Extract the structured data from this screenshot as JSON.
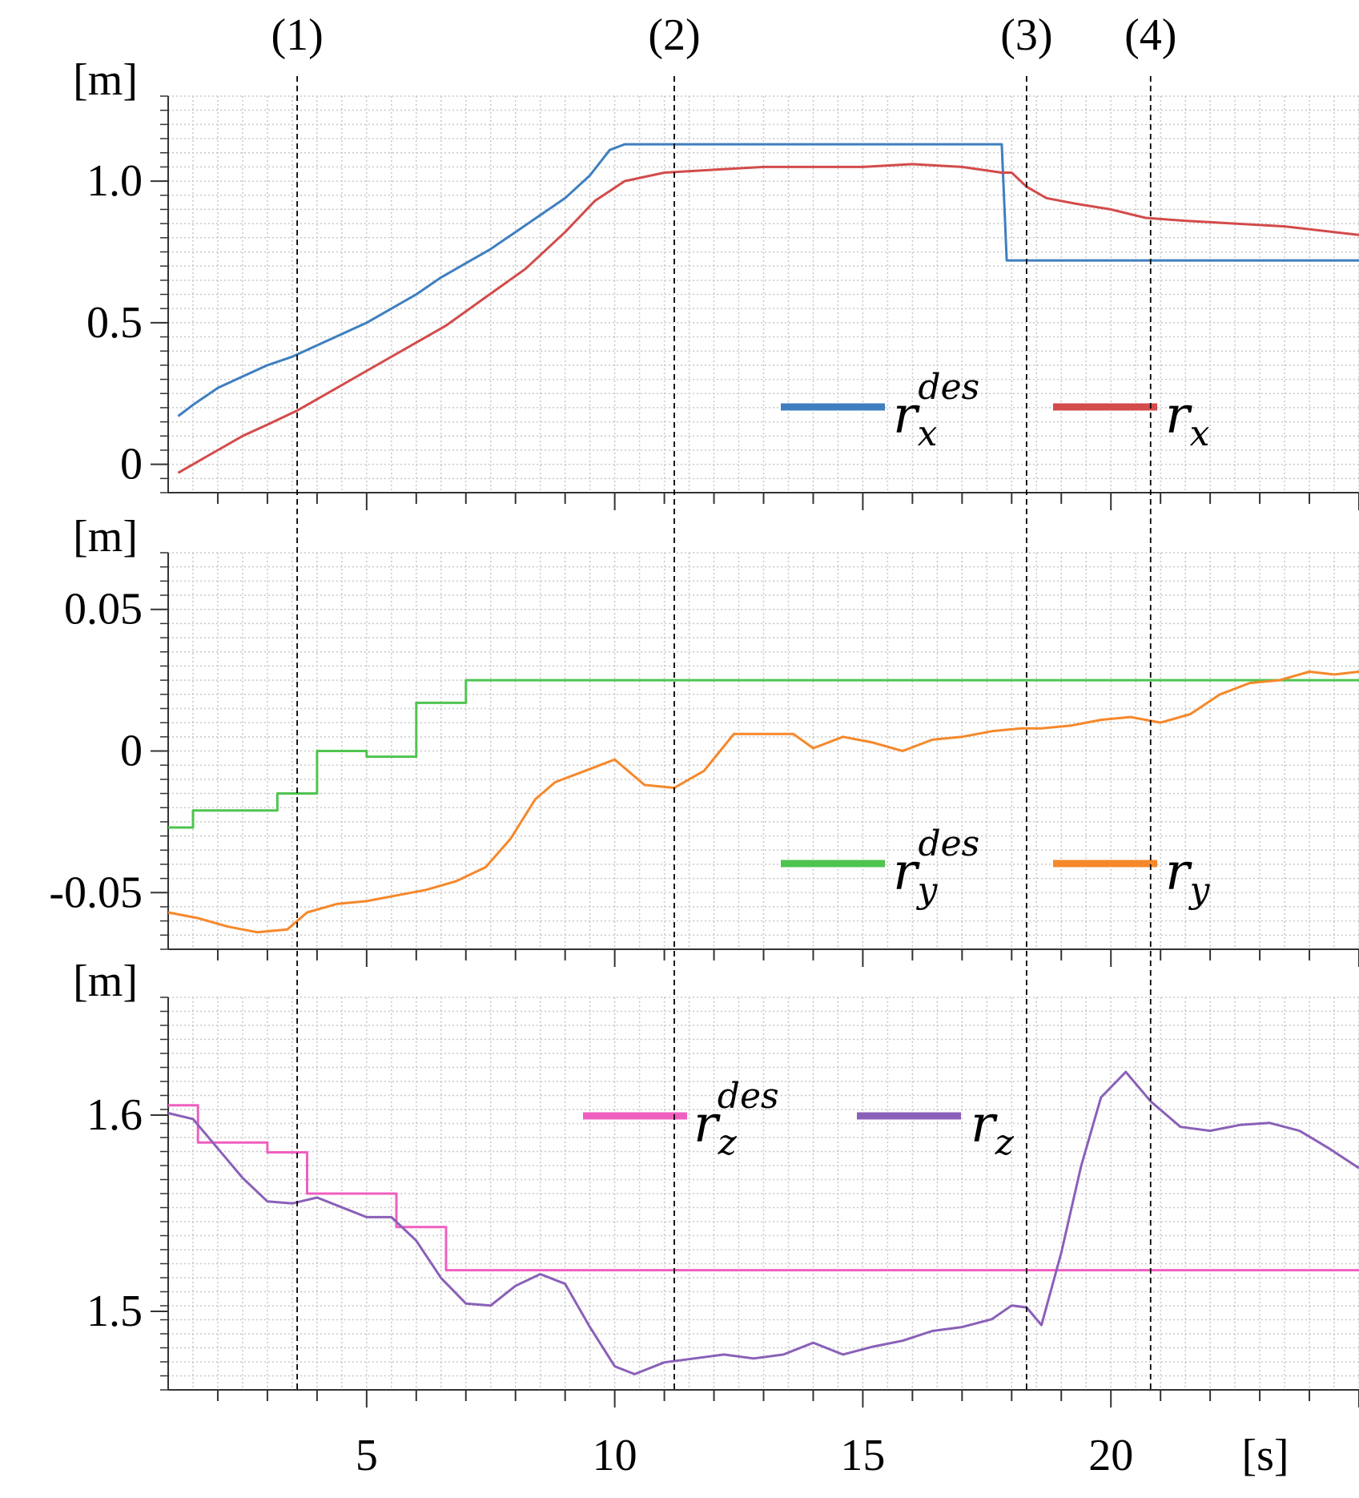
{
  "figure": {
    "markers": [
      {
        "label": "(1)",
        "t": 3.6
      },
      {
        "label": "(2)",
        "t": 11.2
      },
      {
        "label": "(3)",
        "t": 18.3
      },
      {
        "label": "(4)",
        "t": 20.8
      }
    ],
    "x_unit": "[s]",
    "x_ticks": [
      5,
      10,
      15,
      20
    ],
    "x_range": [
      1,
      25
    ]
  },
  "chart_data": [
    {
      "type": "line",
      "panel": "x",
      "ylabel": "[m]",
      "ylim": [
        -0.1,
        1.3
      ],
      "yticks": [
        0,
        0.5,
        1.0
      ],
      "ytick_labels": [
        "0",
        "0.5",
        "1.0"
      ],
      "grid": true,
      "legend": "center-right",
      "series": [
        {
          "name": "r",
          "sub": "x",
          "sup": "des",
          "color": "#3f7fbf",
          "step": true,
          "points": [
            [
              1.2,
              0.17
            ],
            [
              1.5,
              0.21
            ],
            [
              2.0,
              0.27
            ],
            [
              2.5,
              0.31
            ],
            [
              3.0,
              0.35
            ],
            [
              3.5,
              0.38
            ],
            [
              4.0,
              0.42
            ],
            [
              4.5,
              0.46
            ],
            [
              5.0,
              0.5
            ],
            [
              5.5,
              0.55
            ],
            [
              6.0,
              0.6
            ],
            [
              6.5,
              0.66
            ],
            [
              7.0,
              0.71
            ],
            [
              7.5,
              0.76
            ],
            [
              8.0,
              0.82
            ],
            [
              8.5,
              0.88
            ],
            [
              9.0,
              0.94
            ],
            [
              9.5,
              1.02
            ],
            [
              9.9,
              1.11
            ],
            [
              10.2,
              1.13
            ],
            [
              17.8,
              1.13
            ],
            [
              17.9,
              0.72
            ],
            [
              25.0,
              0.72
            ]
          ]
        },
        {
          "name": "r",
          "sub": "x",
          "sup": "",
          "color": "#d34b4b",
          "step": false,
          "points": [
            [
              1.2,
              -0.03
            ],
            [
              1.8,
              0.03
            ],
            [
              2.5,
              0.1
            ],
            [
              3.0,
              0.14
            ],
            [
              3.6,
              0.19
            ],
            [
              4.2,
              0.25
            ],
            [
              5.0,
              0.33
            ],
            [
              5.8,
              0.41
            ],
            [
              6.6,
              0.49
            ],
            [
              7.4,
              0.59
            ],
            [
              8.2,
              0.69
            ],
            [
              9.0,
              0.82
            ],
            [
              9.6,
              0.93
            ],
            [
              10.2,
              1.0
            ],
            [
              11.0,
              1.03
            ],
            [
              12.0,
              1.04
            ],
            [
              13.0,
              1.05
            ],
            [
              14.0,
              1.05
            ],
            [
              15.0,
              1.05
            ],
            [
              16.0,
              1.06
            ],
            [
              17.0,
              1.05
            ],
            [
              17.8,
              1.03
            ],
            [
              18.0,
              1.03
            ],
            [
              18.3,
              0.98
            ],
            [
              18.7,
              0.94
            ],
            [
              19.3,
              0.92
            ],
            [
              20.0,
              0.9
            ],
            [
              20.7,
              0.87
            ],
            [
              21.5,
              0.86
            ],
            [
              22.5,
              0.85
            ],
            [
              23.5,
              0.84
            ],
            [
              24.5,
              0.82
            ],
            [
              25.0,
              0.81
            ]
          ]
        }
      ]
    },
    {
      "type": "line",
      "panel": "y",
      "ylabel": "[m]",
      "ylim": [
        -0.07,
        0.07
      ],
      "yticks": [
        -0.05,
        0,
        0.05
      ],
      "ytick_labels": [
        "-0.05",
        "0",
        "0.05"
      ],
      "grid": true,
      "legend": "lower-right",
      "series": [
        {
          "name": "r",
          "sub": "y",
          "sup": "des",
          "color": "#4fc44f",
          "step": true,
          "points": [
            [
              1.0,
              -0.027
            ],
            [
              1.5,
              -0.027
            ],
            [
              1.5,
              -0.021
            ],
            [
              3.2,
              -0.021
            ],
            [
              3.2,
              -0.015
            ],
            [
              4.0,
              -0.015
            ],
            [
              4.0,
              0.0
            ],
            [
              5.0,
              0.0
            ],
            [
              5.0,
              -0.002
            ],
            [
              6.0,
              -0.002
            ],
            [
              6.0,
              0.017
            ],
            [
              7.0,
              0.017
            ],
            [
              7.0,
              0.025
            ],
            [
              25.0,
              0.025
            ]
          ]
        },
        {
          "name": "r",
          "sub": "y",
          "sup": "",
          "color": "#f5882a",
          "step": false,
          "points": [
            [
              1.0,
              -0.057
            ],
            [
              1.6,
              -0.059
            ],
            [
              2.2,
              -0.062
            ],
            [
              2.8,
              -0.064
            ],
            [
              3.4,
              -0.063
            ],
            [
              3.8,
              -0.057
            ],
            [
              4.4,
              -0.054
            ],
            [
              5.0,
              -0.053
            ],
            [
              5.6,
              -0.051
            ],
            [
              6.2,
              -0.049
            ],
            [
              6.8,
              -0.046
            ],
            [
              7.4,
              -0.041
            ],
            [
              7.9,
              -0.031
            ],
            [
              8.4,
              -0.017
            ],
            [
              8.8,
              -0.011
            ],
            [
              9.4,
              -0.007
            ],
            [
              10.0,
              -0.003
            ],
            [
              10.6,
              -0.012
            ],
            [
              11.2,
              -0.013
            ],
            [
              11.8,
              -0.007
            ],
            [
              12.4,
              0.006
            ],
            [
              13.0,
              0.006
            ],
            [
              13.6,
              0.006
            ],
            [
              14.0,
              0.001
            ],
            [
              14.6,
              0.005
            ],
            [
              15.2,
              0.003
            ],
            [
              15.8,
              0.0
            ],
            [
              16.4,
              0.004
            ],
            [
              17.0,
              0.005
            ],
            [
              17.6,
              0.007
            ],
            [
              18.2,
              0.008
            ],
            [
              18.6,
              0.008
            ],
            [
              19.2,
              0.009
            ],
            [
              19.8,
              0.011
            ],
            [
              20.4,
              0.012
            ],
            [
              21.0,
              0.01
            ],
            [
              21.6,
              0.013
            ],
            [
              22.2,
              0.02
            ],
            [
              22.8,
              0.024
            ],
            [
              23.4,
              0.025
            ],
            [
              24.0,
              0.028
            ],
            [
              24.5,
              0.027
            ],
            [
              25.0,
              0.028
            ]
          ]
        }
      ]
    },
    {
      "type": "line",
      "panel": "z",
      "ylabel": "[m]",
      "ylim": [
        1.46,
        1.66
      ],
      "yticks": [
        1.5,
        1.6
      ],
      "ytick_labels": [
        "1.5",
        "1.6"
      ],
      "grid": true,
      "legend": "upper-center",
      "series": [
        {
          "name": "r",
          "sub": "z",
          "sup": "des",
          "color": "#ef5fbf",
          "step": true,
          "points": [
            [
              1.0,
              1.605
            ],
            [
              1.6,
              1.605
            ],
            [
              1.6,
              1.586
            ],
            [
              3.0,
              1.586
            ],
            [
              3.0,
              1.581
            ],
            [
              3.8,
              1.581
            ],
            [
              3.8,
              1.56
            ],
            [
              5.6,
              1.56
            ],
            [
              5.6,
              1.543
            ],
            [
              6.6,
              1.543
            ],
            [
              6.6,
              1.521
            ],
            [
              25.0,
              1.521
            ]
          ]
        },
        {
          "name": "r",
          "sub": "z",
          "sup": "",
          "color": "#8a60b8",
          "step": false,
          "points": [
            [
              1.0,
              1.601
            ],
            [
              1.5,
              1.598
            ],
            [
              2.0,
              1.583
            ],
            [
              2.5,
              1.568
            ],
            [
              3.0,
              1.556
            ],
            [
              3.5,
              1.555
            ],
            [
              4.0,
              1.558
            ],
            [
              4.5,
              1.553
            ],
            [
              5.0,
              1.548
            ],
            [
              5.5,
              1.548
            ],
            [
              6.0,
              1.536
            ],
            [
              6.5,
              1.517
            ],
            [
              7.0,
              1.504
            ],
            [
              7.5,
              1.503
            ],
            [
              8.0,
              1.513
            ],
            [
              8.5,
              1.519
            ],
            [
              9.0,
              1.514
            ],
            [
              9.5,
              1.492
            ],
            [
              10.0,
              1.472
            ],
            [
              10.4,
              1.468
            ],
            [
              11.0,
              1.474
            ],
            [
              11.6,
              1.476
            ],
            [
              12.2,
              1.478
            ],
            [
              12.8,
              1.476
            ],
            [
              13.4,
              1.478
            ],
            [
              14.0,
              1.484
            ],
            [
              14.6,
              1.478
            ],
            [
              15.2,
              1.482
            ],
            [
              15.8,
              1.485
            ],
            [
              16.4,
              1.49
            ],
            [
              17.0,
              1.492
            ],
            [
              17.6,
              1.496
            ],
            [
              18.0,
              1.503
            ],
            [
              18.3,
              1.502
            ],
            [
              18.6,
              1.493
            ],
            [
              19.0,
              1.53
            ],
            [
              19.4,
              1.574
            ],
            [
              19.8,
              1.609
            ],
            [
              20.3,
              1.622
            ],
            [
              20.8,
              1.607
            ],
            [
              21.4,
              1.594
            ],
            [
              22.0,
              1.592
            ],
            [
              22.6,
              1.595
            ],
            [
              23.2,
              1.596
            ],
            [
              23.8,
              1.592
            ],
            [
              24.4,
              1.583
            ],
            [
              25.0,
              1.573
            ]
          ]
        }
      ]
    }
  ]
}
